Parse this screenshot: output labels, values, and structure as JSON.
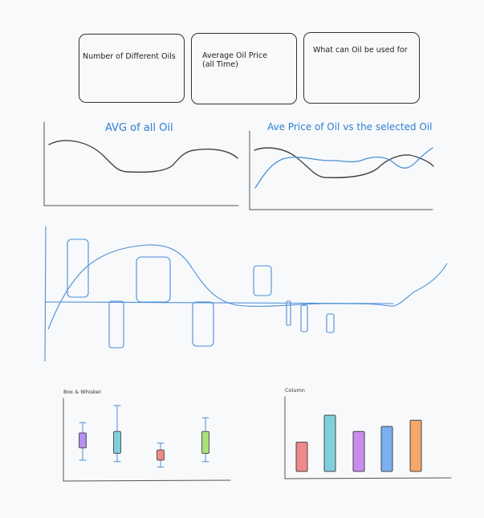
{
  "kpi_cards": [
    {
      "label": "Number of Different Oils"
    },
    {
      "label": "Average Oil Price\n(all Time)"
    },
    {
      "label": "What can Oil be used for"
    }
  ],
  "avg_chart": {
    "title": "AVG of all Oil"
  },
  "compare_chart": {
    "title": "Ave Price of Oil vs the selected Oil"
  },
  "box_chart": {
    "title": "Box & Whisker"
  },
  "column_chart": {
    "title": "Column"
  },
  "colors": {
    "line_dark": "#444444",
    "line_blue": "#4a8fd6",
    "purple": "#b48ef0",
    "cyan": "#7fd0dc",
    "red": "#f08a8a",
    "green": "#a8e07a",
    "blue": "#7ab0f2",
    "orange": "#f5a86a"
  },
  "chart_data": [
    {
      "type": "box",
      "title": "Box & Whisker",
      "boxes": [
        {
          "min": 0.2,
          "q1": 0.38,
          "q3": 0.6,
          "max": 0.75,
          "color": "#b48ef0"
        },
        {
          "min": 0.18,
          "q1": 0.3,
          "q3": 0.62,
          "max": 1.0,
          "color": "#7fd0dc"
        },
        {
          "min": 0.1,
          "q1": 0.2,
          "q3": 0.35,
          "max": 0.45,
          "color": "#f08a8a"
        },
        {
          "min": 0.18,
          "q1": 0.3,
          "q3": 0.62,
          "max": 0.82,
          "color": "#a8e07a"
        }
      ]
    },
    {
      "type": "bar",
      "title": "Column",
      "values": [
        0.52,
        1.0,
        0.71,
        0.8,
        0.91
      ],
      "colors": [
        "#f08a8a",
        "#7fd0dc",
        "#c98df0",
        "#7ab0f2",
        "#f5a86a"
      ]
    }
  ]
}
